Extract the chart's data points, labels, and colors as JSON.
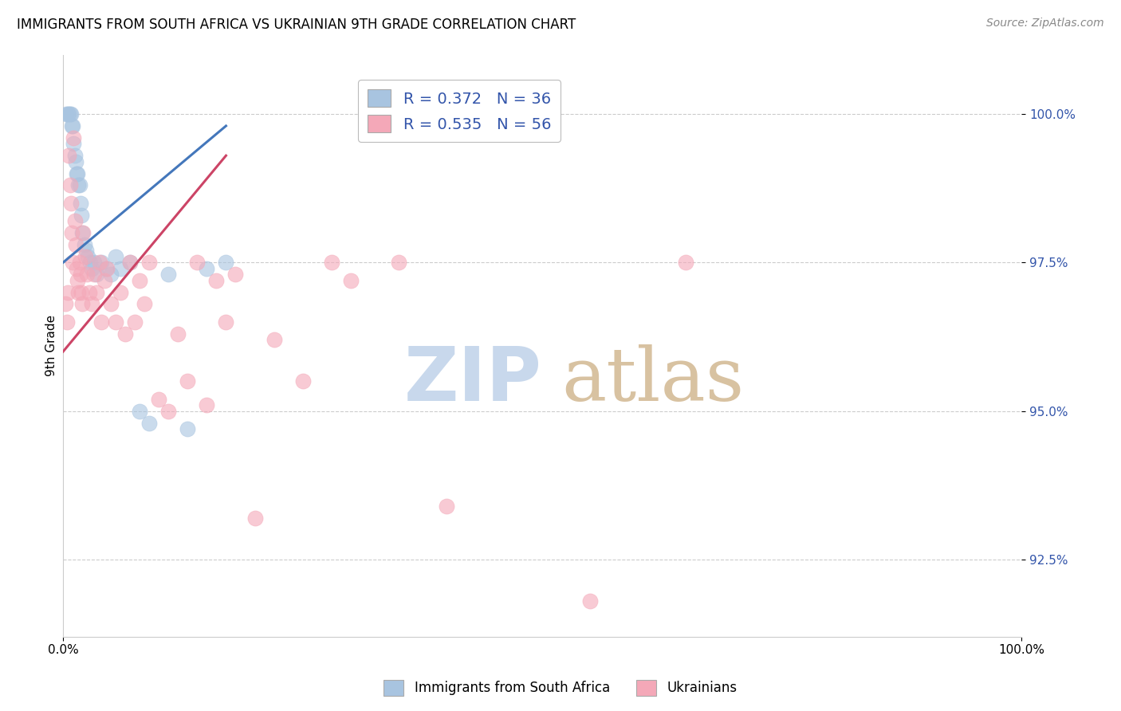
{
  "title": "IMMIGRANTS FROM SOUTH AFRICA VS UKRAINIAN 9TH GRADE CORRELATION CHART",
  "source": "Source: ZipAtlas.com",
  "ylabel": "9th Grade",
  "ytick_labels": [
    "92.5%",
    "95.0%",
    "97.5%",
    "100.0%"
  ],
  "ytick_values": [
    92.5,
    95.0,
    97.5,
    100.0
  ],
  "xlim": [
    0.0,
    100.0
  ],
  "ylim": [
    91.2,
    101.0
  ],
  "blue_R": 0.372,
  "blue_N": 36,
  "pink_R": 0.535,
  "pink_N": 56,
  "blue_color": "#A8C4E0",
  "pink_color": "#F4A8B8",
  "blue_line_color": "#4477BB",
  "pink_line_color": "#CC4466",
  "legend_text_color": "#3355AA",
  "legend_label_blue": "Immigrants from South Africa",
  "legend_label_pink": "Ukrainians",
  "blue_scatter_x": [
    0.3,
    0.5,
    0.6,
    0.7,
    0.8,
    0.9,
    1.0,
    1.1,
    1.2,
    1.3,
    1.4,
    1.5,
    1.6,
    1.7,
    1.8,
    1.9,
    2.0,
    2.2,
    2.4,
    2.6,
    2.8,
    3.0,
    3.2,
    3.5,
    4.0,
    4.5,
    5.0,
    5.5,
    6.0,
    7.0,
    8.0,
    9.0,
    11.0,
    13.0,
    15.0,
    17.0
  ],
  "blue_scatter_y": [
    100.0,
    100.0,
    100.0,
    100.0,
    100.0,
    99.8,
    99.8,
    99.5,
    99.3,
    99.2,
    99.0,
    99.0,
    98.8,
    98.8,
    98.5,
    98.3,
    98.0,
    97.8,
    97.7,
    97.6,
    97.5,
    97.4,
    97.5,
    97.3,
    97.5,
    97.4,
    97.3,
    97.6,
    97.4,
    97.5,
    95.0,
    94.8,
    97.3,
    94.7,
    97.4,
    97.5
  ],
  "pink_scatter_x": [
    0.2,
    0.4,
    0.5,
    0.6,
    0.7,
    0.8,
    0.9,
    1.0,
    1.1,
    1.2,
    1.3,
    1.4,
    1.5,
    1.6,
    1.7,
    1.8,
    1.9,
    2.0,
    2.1,
    2.3,
    2.5,
    2.7,
    3.0,
    3.2,
    3.5,
    3.8,
    4.0,
    4.3,
    4.6,
    5.0,
    5.5,
    6.0,
    6.5,
    7.0,
    7.5,
    8.0,
    8.5,
    9.0,
    10.0,
    11.0,
    12.0,
    13.0,
    14.0,
    15.0,
    16.0,
    17.0,
    18.0,
    20.0,
    22.0,
    25.0,
    28.0,
    30.0,
    35.0,
    40.0,
    55.0,
    65.0
  ],
  "pink_scatter_y": [
    96.8,
    96.5,
    97.0,
    99.3,
    98.8,
    98.5,
    98.0,
    97.5,
    99.6,
    98.2,
    97.8,
    97.4,
    97.2,
    97.0,
    97.5,
    97.3,
    97.0,
    96.8,
    98.0,
    97.6,
    97.3,
    97.0,
    96.8,
    97.3,
    97.0,
    97.5,
    96.5,
    97.2,
    97.4,
    96.8,
    96.5,
    97.0,
    96.3,
    97.5,
    96.5,
    97.2,
    96.8,
    97.5,
    95.2,
    95.0,
    96.3,
    95.5,
    97.5,
    95.1,
    97.2,
    96.5,
    97.3,
    93.2,
    96.2,
    95.5,
    97.5,
    97.2,
    97.5,
    93.4,
    91.8,
    97.5
  ],
  "blue_line_x0": 0.0,
  "blue_line_y0": 97.5,
  "blue_line_x1": 17.0,
  "blue_line_y1": 99.8,
  "pink_line_x0": 0.0,
  "pink_line_y0": 96.0,
  "pink_line_x1": 17.0,
  "pink_line_y1": 99.3
}
